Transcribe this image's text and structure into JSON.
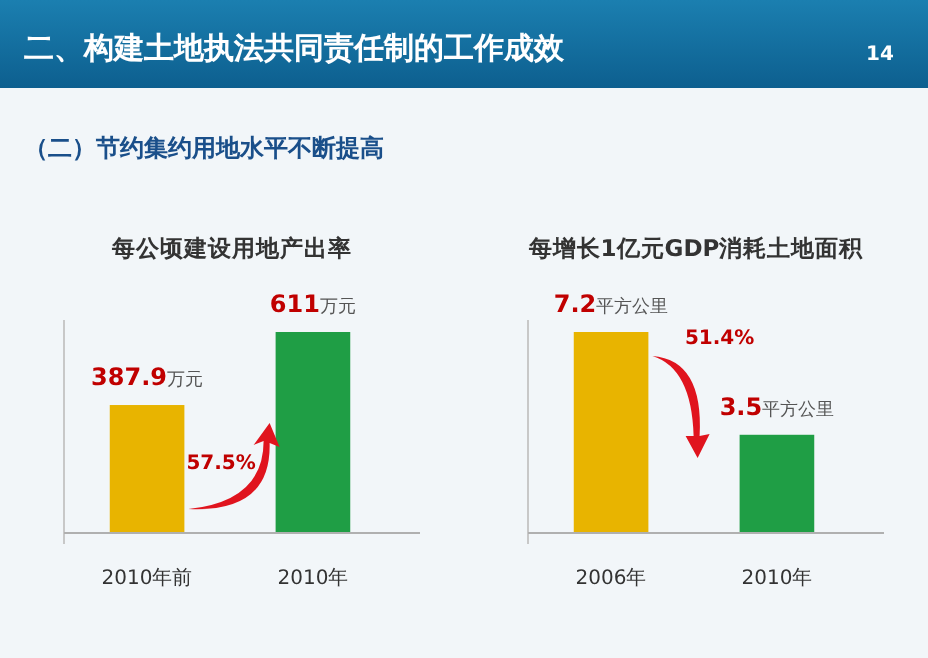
{
  "chart_data": [
    {
      "type": "other",
      "title": "二、构建土地执法共同责任制的工作成效",
      "subtitle": "（二）节约集约用地水平不断提高",
      "annotations": [
        "14"
      ]
    },
    {
      "type": "bar",
      "title": "每公顷建设用地产出率",
      "categories": [
        "2010年前",
        "2010年"
      ],
      "values": [
        387.9,
        611
      ],
      "value_labels": [
        "387.9万元",
        "611万元"
      ],
      "colors": [
        "#e8b400",
        "#1f9e45"
      ],
      "annotations": [
        "57.5%"
      ]
    },
    {
      "type": "bar",
      "title": "每增长1亿元GDP消耗土地面积",
      "categories": [
        "2006年",
        "2010年"
      ],
      "values": [
        7.2,
        3.5
      ],
      "value_labels": [
        "7.2平方公里",
        "3.5平方公里"
      ],
      "colors": [
        "#e8b400",
        "#1f9e45"
      ],
      "annotations": [
        "51.4%"
      ]
    }
  ]
}
